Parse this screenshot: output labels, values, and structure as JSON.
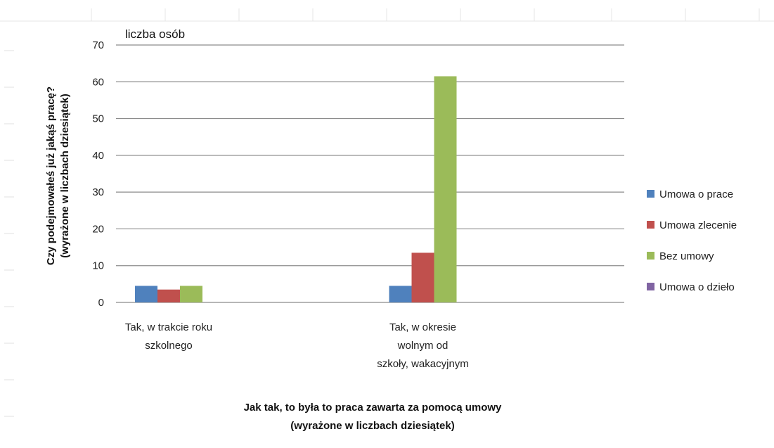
{
  "chart_data": {
    "type": "bar",
    "unit_label": "liczba osób",
    "ylabel_lines": [
      "Czy podejmowałeś już jakąś pracę?",
      "(wyrażone w liczbach dziesiątek)"
    ],
    "xlabel_lines": [
      "Jak tak, to była to praca zawarta za pomocą umowy",
      "(wyrażone w liczbach dziesiątek)"
    ],
    "categories": [
      [
        "Tak, w trakcie roku",
        "szkolnego"
      ],
      [
        "Tak, w okresie",
        "wolnym od",
        "szkoły, wakacyjnym"
      ]
    ],
    "series": [
      {
        "name": "Umowa o prace",
        "color": "#4F81BD",
        "values": [
          4.5,
          4.5
        ]
      },
      {
        "name": "Umowa zlecenie",
        "color": "#C0504D",
        "values": [
          3.5,
          13.5
        ]
      },
      {
        "name": "Bez umowy",
        "color": "#9BBB59",
        "values": [
          4.5,
          61.5
        ]
      },
      {
        "name": "Umowa o dzieło",
        "color": "#8064A2",
        "values": [
          0,
          0
        ]
      }
    ],
    "ylim": [
      0,
      70
    ],
    "yticks": [
      0,
      10,
      20,
      30,
      40,
      50,
      60,
      70
    ],
    "grid": true,
    "legend_position": "right"
  }
}
